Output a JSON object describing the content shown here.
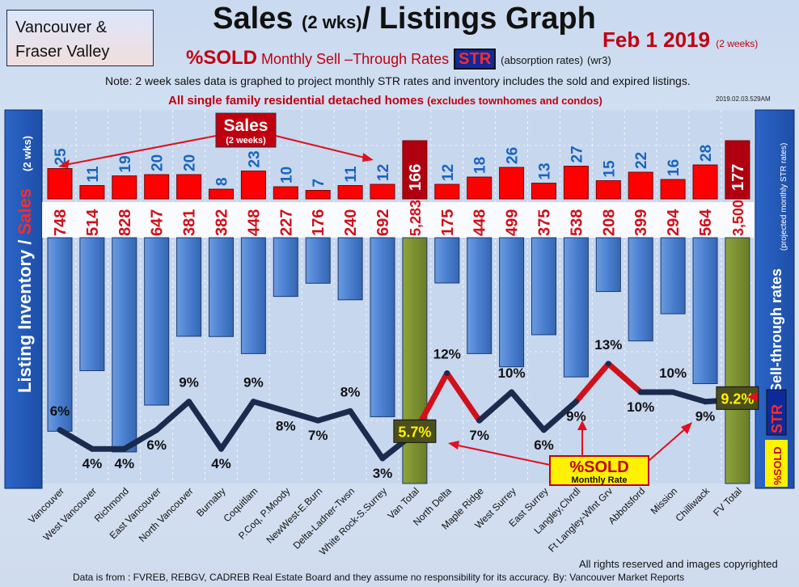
{
  "header": {
    "region_line1": "Vancouver &",
    "region_line2": "Fraser Valley",
    "title_main": "Sales ",
    "title_small": "(2 wks)",
    "title_rest": "/ Listings Graph",
    "date": "Feb 1 2019",
    "date_note": "(2 weeks)",
    "str_sold": "%SOLD",
    "str_text": " Monthly Sell –Through Rates",
    "str_badge": "STR",
    "str_abs": "(absorption rates)",
    "str_ver": "(wr3)",
    "note": "Note: 2 week sales data is graphed to project monthly STR rates and inventory includes the sold and expired listings.",
    "subtitle": "All single family residential detached homes",
    "subtitle_small": "(excludes townhomes and condos)",
    "stamp": "2019.02.03.529AM"
  },
  "footer": {
    "rights": "All rights reserved and  images copyrighted",
    "data_source": "Data is from : FVREB, REBGV, CADREB Real Estate Board and they assume no responsibility for its accuracy. By: Vancouver Market Reports"
  },
  "annotations": {
    "left_axis_inventory": "Listing Inventory / ",
    "left_axis_sales": "Sales",
    "left_axis_suffix": "(2 wks)",
    "right_axis_main": "Sell-through rates",
    "right_axis_sub": "(projected monthly STR rates)",
    "right_str": "STR",
    "right_sold": "%SOLD",
    "sales_callout": "Sales",
    "sales_callout_sub": "(2 weeks)",
    "sold_callout": "%SOLD",
    "sold_callout_sub": "Monthly Rate"
  },
  "colors": {
    "inventory_bar": "#4a7fd0",
    "total_bar": "#7c8f30",
    "sales_bar": "#ff0000",
    "total_sales_bar": "#b00010",
    "str_line": "#1a2b4d",
    "str_highlight": "#d0101a",
    "sales_label": "#1a64c0",
    "inventory_label": "#d0101a"
  },
  "chart_data": {
    "type": "bar",
    "title": "Sales (2 wks)/ Listings Graph",
    "categories": [
      "Vancouver",
      "West Vancouver",
      "Richmond",
      "East Vancouver",
      "North Vancouver",
      "Burnaby",
      "Coquitlam",
      "P.Coq, P.Moody",
      "NewWest-E.Burn",
      "Delta-Ladner-Twsn",
      "White Rock-S.Surrey",
      "Van Total",
      "North Delta",
      "Maple Ridge",
      "West Surrey",
      "East Surrey",
      "Langley,Clvrdl",
      "Ft Langley-Wlnt Grv",
      "Abbotsford",
      "Mission",
      "Chilliwack",
      "FV Total"
    ],
    "series": [
      {
        "name": "Sales",
        "values": [
          25,
          11,
          19,
          20,
          20,
          8,
          23,
          10,
          7,
          11,
          12,
          166,
          12,
          18,
          26,
          13,
          27,
          15,
          22,
          16,
          28,
          177
        ]
      },
      {
        "name": "Listing Inventory",
        "values": [
          748,
          514,
          828,
          647,
          381,
          382,
          448,
          227,
          176,
          240,
          692,
          5283,
          175,
          448,
          499,
          375,
          538,
          208,
          399,
          294,
          564,
          3500
        ]
      },
      {
        "name": "%SOLD",
        "values": [
          6,
          4,
          4,
          6,
          9,
          4,
          9,
          8,
          7,
          8,
          3,
          5.7,
          12,
          7,
          10,
          6,
          9,
          13,
          10,
          10,
          9,
          9.2
        ]
      }
    ],
    "sales_labels": [
      "25",
      "11",
      "19",
      "20",
      "20",
      "8",
      "23",
      "10",
      "7",
      "11",
      "12",
      "166",
      "12",
      "18",
      "26",
      "13",
      "27",
      "15",
      "22",
      "16",
      "28",
      "177"
    ],
    "inventory_labels": [
      "748",
      "514",
      "828",
      "647",
      "381",
      "382",
      "448",
      "227",
      "176",
      "240",
      "692",
      "5,283",
      "175",
      "448",
      "499",
      "375",
      "538",
      "208",
      "399",
      "294",
      "564",
      "3,500"
    ],
    "sold_labels": [
      "6%",
      "4%",
      "4%",
      "6%",
      "9%",
      "4%",
      "9%",
      "8%",
      "7%",
      "8%",
      "3%",
      "5.7%",
      "12%",
      "7%",
      "10%",
      "6%",
      "9%",
      "13%",
      "10%",
      "10%",
      "9%",
      "9.2%"
    ],
    "totals_index": [
      11,
      21
    ],
    "grid": true
  }
}
